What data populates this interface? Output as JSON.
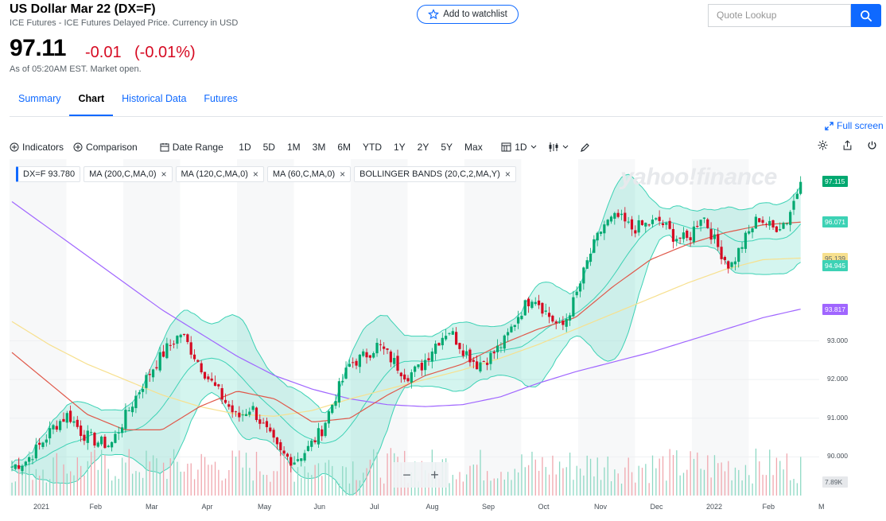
{
  "header": {
    "title": "US Dollar Mar 22 (DX=F)",
    "subtitle": "ICE Futures - ICE Futures Delayed Price. Currency in USD",
    "price": "97.11",
    "change": "-0.01",
    "change_pct": "(-0.01%)",
    "as_of": "As of 05:20AM EST. Market open.",
    "watchlist_label": "Add to watchlist"
  },
  "search": {
    "placeholder": "Quote Lookup"
  },
  "tabs": [
    {
      "label": "Summary"
    },
    {
      "label": "Chart",
      "active": true
    },
    {
      "label": "Historical Data"
    },
    {
      "label": "Futures"
    }
  ],
  "fullscreen_label": "Full screen",
  "toolbar": {
    "indicators": "Indicators",
    "comparison": "Comparison",
    "date_range": "Date Range",
    "ranges": [
      "1D",
      "5D",
      "1M",
      "3M",
      "6M",
      "YTD",
      "1Y",
      "2Y",
      "5Y",
      "Max"
    ],
    "interval": "1D"
  },
  "pills": [
    {
      "label": "DX=F  93.780"
    },
    {
      "label": "MA (200,C,MA,0)"
    },
    {
      "label": "MA (120,C,MA,0)"
    },
    {
      "label": "MA (60,C,MA,0)"
    },
    {
      "label": "BOLLINGER BANDS (20,C,2,MA,Y)"
    }
  ],
  "watermark": "yahoo!finance",
  "zoom": {
    "minus": "−",
    "plus": "+"
  },
  "colors": {
    "accent": "#0f69ff",
    "down": "#d60a22",
    "up": "#00a870",
    "band": "#3dd2b5",
    "ma200": "#a066ff",
    "ma120": "#f7e08e",
    "ma60": "#e0584a"
  },
  "chart_data": {
    "type": "candlestick",
    "x_labels": [
      "2021",
      "Feb",
      "Mar",
      "Apr",
      "May",
      "Jun",
      "Jul",
      "Aug",
      "Sep",
      "Oct",
      "Nov",
      "Dec",
      "2022",
      "Feb",
      "M"
    ],
    "y_ticks": [
      "93.000",
      "92.000",
      "91.000",
      "90.000"
    ],
    "ylim": [
      89.0,
      97.7
    ],
    "price_tags": [
      {
        "label": "97.115",
        "value": 97.115,
        "color": "#00a870"
      },
      {
        "label": "96.071",
        "value": 96.071,
        "color": "#3dd2b5"
      },
      {
        "label": "95.139",
        "value": 95.139,
        "color": "#f7e08e"
      },
      {
        "label": "94.945",
        "value": 94.945,
        "color": "#3dd2b5"
      },
      {
        "label": "93.817",
        "value": 93.817,
        "color": "#a066ff"
      },
      {
        "label": "7.89K",
        "value": 7890,
        "color": "#e6e8eb"
      }
    ],
    "close_series": [
      89.75,
      89.9,
      90.3,
      90.8,
      91.1,
      90.6,
      90.4,
      90.3,
      91.0,
      91.7,
      92.3,
      92.8,
      93.2,
      92.6,
      92.0,
      91.5,
      91.0,
      91.3,
      90.7,
      90.1,
      89.9,
      90.2,
      90.7,
      91.6,
      92.4,
      92.6,
      92.9,
      92.5,
      92.1,
      92.3,
      92.9,
      93.3,
      92.8,
      92.4,
      92.6,
      93.0,
      93.7,
      94.2,
      93.7,
      93.3,
      94.1,
      95.2,
      96.0,
      96.2,
      95.9,
      96.0,
      96.1,
      95.7,
      95.6,
      96.3,
      95.5,
      94.9,
      95.6,
      96.2,
      95.9,
      96.1,
      97.11
    ],
    "series": [
      {
        "name": "MA (200,C,MA,0)",
        "values": [
          96.6,
          95.9,
          95.2,
          94.5,
          93.8,
          93.2,
          92.6,
          92.1,
          91.75,
          91.5,
          91.35,
          91.3,
          91.35,
          91.55,
          91.9,
          92.2,
          92.45,
          92.7,
          93.0,
          93.3,
          93.6,
          93.82
        ]
      },
      {
        "name": "MA (120,C,MA,0)",
        "values": [
          93.5,
          92.9,
          92.4,
          92.0,
          91.6,
          91.3,
          91.1,
          91.05,
          91.2,
          91.5,
          91.75,
          92.0,
          92.25,
          92.55,
          92.9,
          93.3,
          93.7,
          94.1,
          94.5,
          94.85,
          95.1,
          95.14
        ]
      },
      {
        "name": "MA (60,C,MA,0)",
        "values": [
          92.7,
          91.9,
          91.1,
          90.7,
          90.7,
          91.3,
          91.7,
          91.5,
          90.9,
          91.0,
          91.6,
          92.1,
          92.4,
          92.9,
          93.3,
          93.6,
          94.4,
          95.1,
          95.5,
          95.8,
          96.0,
          96.07
        ]
      }
    ]
  }
}
